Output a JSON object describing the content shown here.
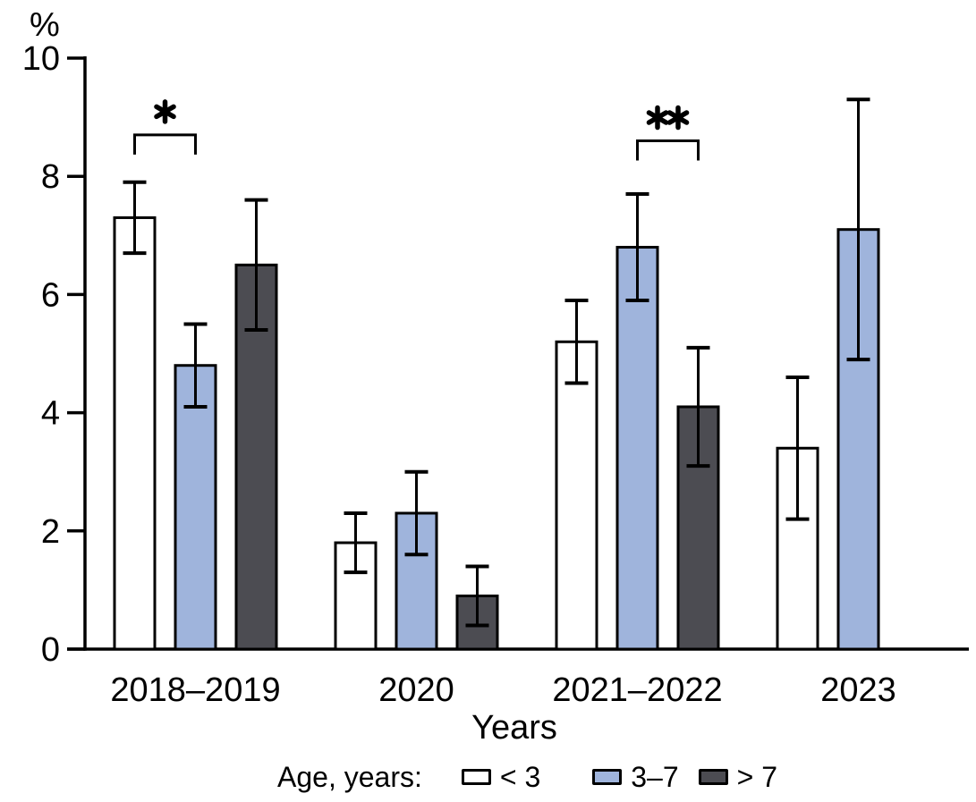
{
  "chart_data": {
    "type": "bar",
    "title": "",
    "ylabel": "%",
    "xlabel": "Years",
    "ylim": [
      0,
      10
    ],
    "yticks": [
      0,
      2,
      4,
      6,
      8,
      10
    ],
    "grid": false,
    "legend_position": "bottom",
    "categories": [
      "2018–2019",
      "2020",
      "2021–2022",
      "2023"
    ],
    "series": [
      {
        "name": "< 3",
        "color": "#ffffff",
        "values": [
          7.3,
          1.8,
          5.2,
          3.4
        ],
        "errors": [
          0.6,
          0.5,
          0.7,
          1.2
        ]
      },
      {
        "name": "3–7",
        "color": "#9fb4dc",
        "values": [
          4.8,
          2.3,
          6.8,
          7.1
        ],
        "errors": [
          0.7,
          0.7,
          0.9,
          2.2
        ]
      },
      {
        "name": "> 7",
        "color": "#4c4c52",
        "values": [
          6.5,
          0.9,
          4.1,
          null
        ],
        "errors": [
          1.1,
          0.5,
          1.0,
          null
        ]
      }
    ],
    "annotations": [
      {
        "label": "*",
        "category_index": 0,
        "from_series": 0,
        "to_series": 1,
        "y": 8.7
      },
      {
        "label": "**",
        "category_index": 2,
        "from_series": 1,
        "to_series": 2,
        "y": 8.6
      }
    ],
    "legend": {
      "title": "Age, years:"
    }
  }
}
